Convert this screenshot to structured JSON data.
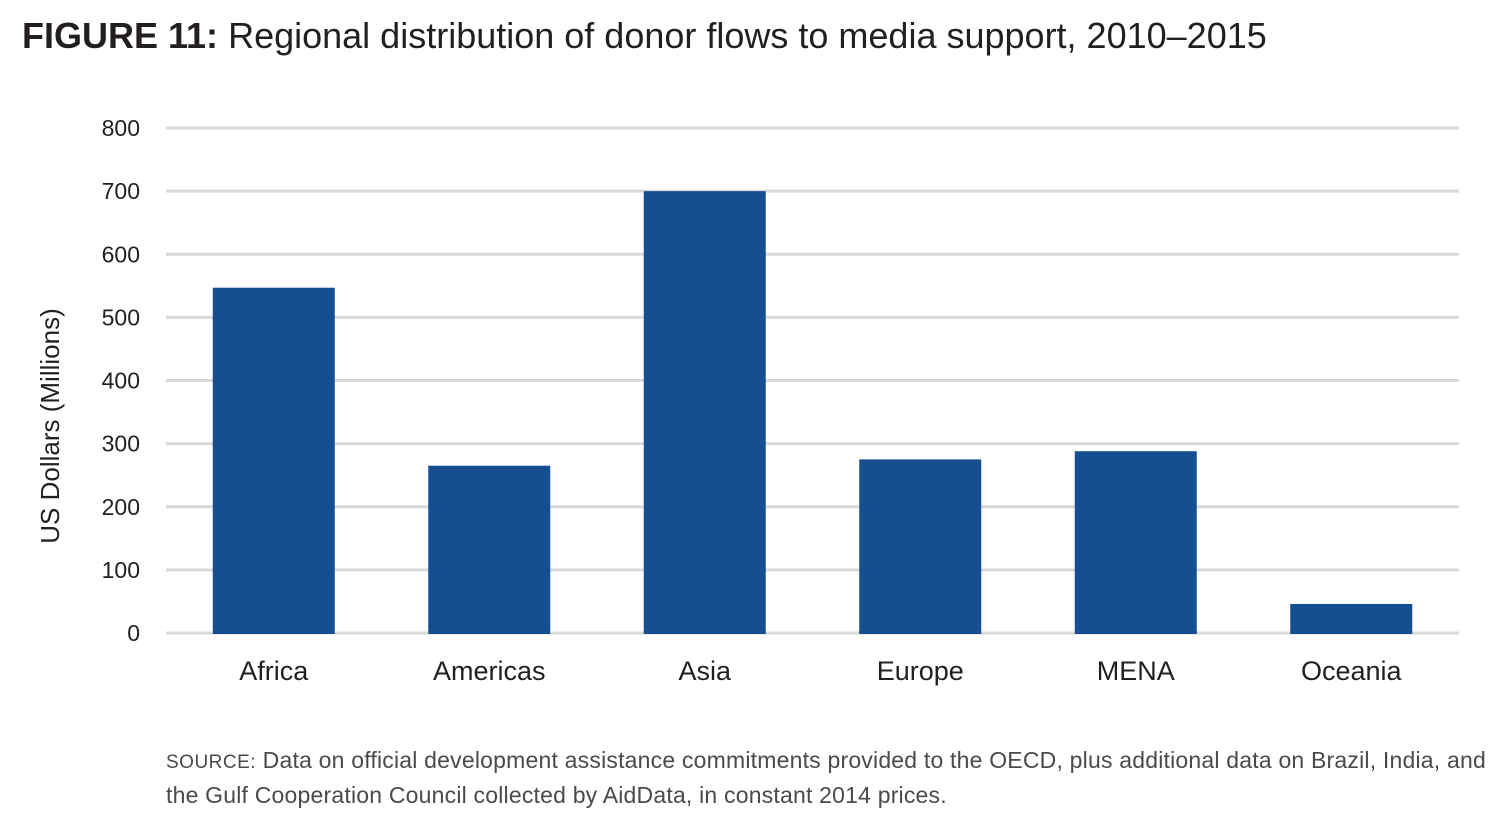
{
  "figure": {
    "prefix": "FIGURE 11:",
    "title": "Regional distribution of donor flows to media support, 2010–2015"
  },
  "source": {
    "label": "SOURCE:",
    "text": "Data on official development assistance commitments provided to the OECD, plus additional data on Brazil, India, and the Gulf Cooperation Council collected by AidData, in constant 2014 prices."
  },
  "colors": {
    "bar": "#154f8f",
    "grid": "#d9d9d9",
    "text": "#231f20"
  },
  "chart_data": {
    "type": "bar",
    "title": "",
    "xlabel": "",
    "ylabel": "US Dollars (Millions)",
    "ylim": [
      0,
      800
    ],
    "yticks": [
      0,
      100,
      200,
      300,
      400,
      500,
      600,
      700,
      800
    ],
    "grid": true,
    "categories": [
      "Africa",
      "Americas",
      "Asia",
      "Europe",
      "MENA",
      "Oceania"
    ],
    "values": [
      547,
      265,
      700,
      275,
      288,
      46
    ]
  }
}
